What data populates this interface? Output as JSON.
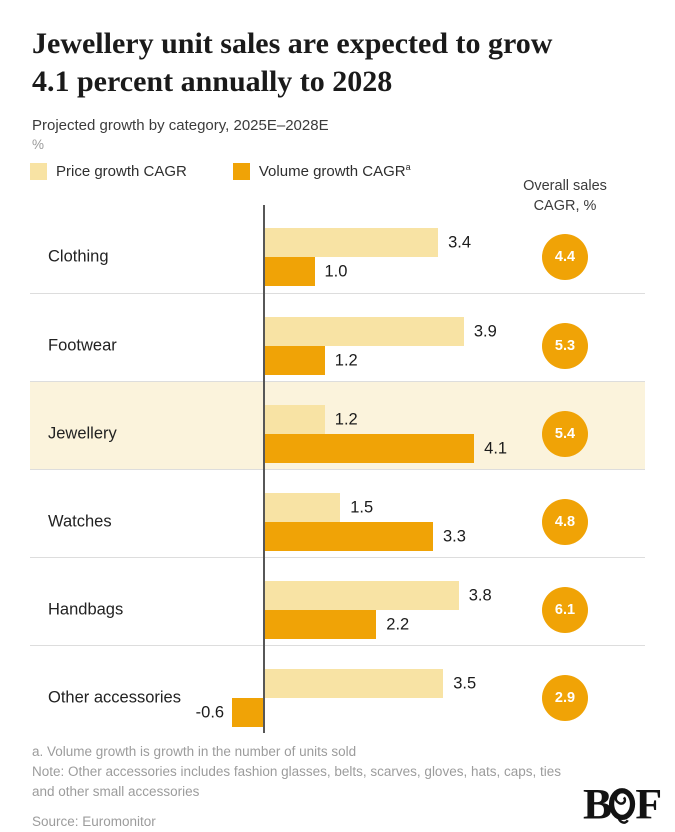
{
  "header": {
    "title_lines": [
      "Jewellery unit sales are expected to grow",
      "4.1 percent annually to 2028"
    ],
    "subtitle": "Projected growth by category, 2025E–2028E",
    "unit_label": "%"
  },
  "legend": [
    {
      "label": "Price growth CAGR",
      "superscript": "",
      "color": "#F8E3A4"
    },
    {
      "label": "Volume growth CAGR",
      "superscript": "a",
      "color": "#F0A306"
    }
  ],
  "right_column_header": {
    "line1": "Overall sales",
    "line2": "CAGR, %"
  },
  "chart_data": {
    "type": "bar",
    "orientation": "horizontal",
    "title": "Jewellery unit sales are expected to grow 4.1 percent annually to 2028",
    "subtitle": "Projected growth by category, 2025E–2028E",
    "unit": "%",
    "categories": [
      "Clothing",
      "Footwear",
      "Jewellery",
      "Watches",
      "Handbags",
      "Other accessories"
    ],
    "series": [
      {
        "name": "Price growth CAGR",
        "color": "#F8E3A4",
        "values": [
          3.4,
          3.9,
          1.2,
          1.5,
          3.8,
          3.5
        ]
      },
      {
        "name": "Volume growth CAGR",
        "color": "#F0A306",
        "values": [
          1.0,
          1.2,
          4.1,
          3.3,
          2.2,
          -0.6
        ]
      }
    ],
    "overall_sales_cagr": [
      4.4,
      5.3,
      5.4,
      4.8,
      6.1,
      2.9
    ],
    "highlighted_category": "Jewellery",
    "highlight_color": "#FBF3DC",
    "x_range": [
      -0.6,
      4.1
    ],
    "value_labels": true,
    "grid": false,
    "legend_position": "top"
  },
  "footer": {
    "footnote_a": "a. Volume growth is growth in the number of units sold",
    "note": "Note: Other accessories includes fashion glasses, belts, scarves, gloves, hats, caps, ties and other small accessories",
    "source": "Source: Euromonitor",
    "logo": {
      "b": "B",
      "f": "F",
      "name": "BoF"
    }
  },
  "colors": {
    "price_bar": "#F8E3A4",
    "volume_bar": "#F0A306",
    "badge": "#F0A306",
    "badge_text": "#ffffff",
    "highlight_row": "#FBF3DC",
    "axis": "#575757",
    "divider": "#dddddd",
    "title_text": "#1a1a1a",
    "footnote_text": "#9c9c9c"
  }
}
